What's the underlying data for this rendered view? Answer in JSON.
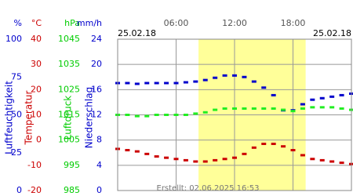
{
  "chart_data": {
    "type": "line",
    "date_left": "25.02.18",
    "date_right": "25.02.18",
    "credit": "Erstellt: 02.06.2025 16:53",
    "xlim": [
      0,
      24
    ],
    "xticks": [
      {
        "value": 6,
        "label": "06:00"
      },
      {
        "value": 12,
        "label": "12:00"
      },
      {
        "value": 18,
        "label": "18:00"
      }
    ],
    "daylight": [
      8.3,
      19.3
    ],
    "axes": [
      {
        "unit": "%",
        "title": "Luftfeuchtigkeit",
        "color": "#0000cc",
        "lim": [
          0,
          100
        ],
        "ticks": [
          100,
          75,
          50,
          25,
          0
        ]
      },
      {
        "unit": "°C",
        "title": "Temperatur",
        "color": "#cc0000",
        "lim": [
          -20,
          40
        ],
        "ticks": [
          40,
          30,
          20,
          10,
          0,
          -10,
          -20
        ]
      },
      {
        "unit": "hPa",
        "title": "Luftdruck",
        "color": "#00cc00",
        "lim": [
          985,
          1045
        ],
        "ticks": [
          1045,
          1035,
          1025,
          1015,
          1005,
          995,
          985
        ]
      },
      {
        "unit": "mm/h",
        "title": "Niederschlag",
        "color": "#0000cc",
        "lim": [
          0,
          24
        ],
        "ticks": [
          24,
          20,
          16,
          12,
          8,
          4,
          0
        ],
        "grid": true
      }
    ],
    "x": [
      0,
      1,
      2,
      3,
      4,
      5,
      6,
      7,
      8,
      9,
      10,
      11,
      12,
      13,
      14,
      15,
      16,
      17,
      18,
      19,
      20,
      21,
      22,
      23,
      24
    ],
    "series": [
      {
        "name": "Luftfeuchtigkeit",
        "axis": 0,
        "color": "#0000cc",
        "values": [
          71,
          71,
          70.5,
          71,
          71,
          71,
          71,
          71.5,
          72,
          73,
          74.5,
          76,
          76,
          75,
          72,
          68,
          63,
          53,
          53,
          57,
          60,
          61,
          62,
          63,
          64
        ]
      },
      {
        "name": "Luftdruck",
        "axis": 2,
        "color": "#22ee22",
        "values": [
          1015,
          1015,
          1014.5,
          1014.5,
          1015,
          1015,
          1015,
          1015,
          1015.5,
          1016,
          1017,
          1017.5,
          1017.5,
          1017.5,
          1017.5,
          1017.5,
          1017.5,
          1017,
          1016.5,
          1017.5,
          1018,
          1018,
          1018,
          1017.5,
          1017
        ]
      },
      {
        "name": "Temperatur",
        "axis": 1,
        "color": "#cc0000",
        "values": [
          -3.5,
          -4,
          -4.5,
          -5.5,
          -6.5,
          -7,
          -7.5,
          -8,
          -8.5,
          -8.5,
          -8,
          -7.5,
          -7,
          -5.5,
          -3,
          -1.5,
          -1.5,
          -2.5,
          -4,
          -6,
          -7.5,
          -8,
          -8.5,
          -9,
          -9.5
        ]
      }
    ]
  }
}
